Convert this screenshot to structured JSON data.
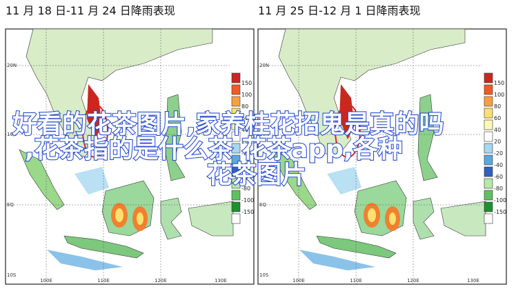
{
  "panels": [
    {
      "title": "11 月 18 日-11 月 24 日降雨表现",
      "lat_labels": [
        "20N",
        "10N",
        "EQ",
        "10S"
      ],
      "lon_labels": [
        "100E",
        "110E",
        "120E",
        "130E"
      ]
    },
    {
      "title": "11 月 25 日-12 月 1 日降雨表现",
      "lat_labels": [
        "20N",
        "10N",
        "EQ",
        "10S"
      ],
      "lon_labels": [
        "100E",
        "110E",
        "120E",
        "130E"
      ]
    }
  ],
  "legend": {
    "labels": [
      150,
      100,
      80,
      60,
      40,
      20,
      -20,
      -40,
      -60,
      -80,
      -100,
      -150
    ],
    "colors": [
      "#c8281e",
      "#f05a28",
      "#f8a040",
      "#fce070",
      "#fff8b8",
      "#ffffff",
      "#a8d8f0",
      "#5aa8e0",
      "#3060c0",
      "#b8e8a8",
      "#60c060",
      "#1e9030",
      "#ffffff"
    ]
  },
  "overlay": {
    "lines": [
      "好看的花茶图片,家养桂花招鬼是真的吗",
      ",花茶指的是什么茶 花茶app,各种",
      "花茶图片"
    ]
  }
}
